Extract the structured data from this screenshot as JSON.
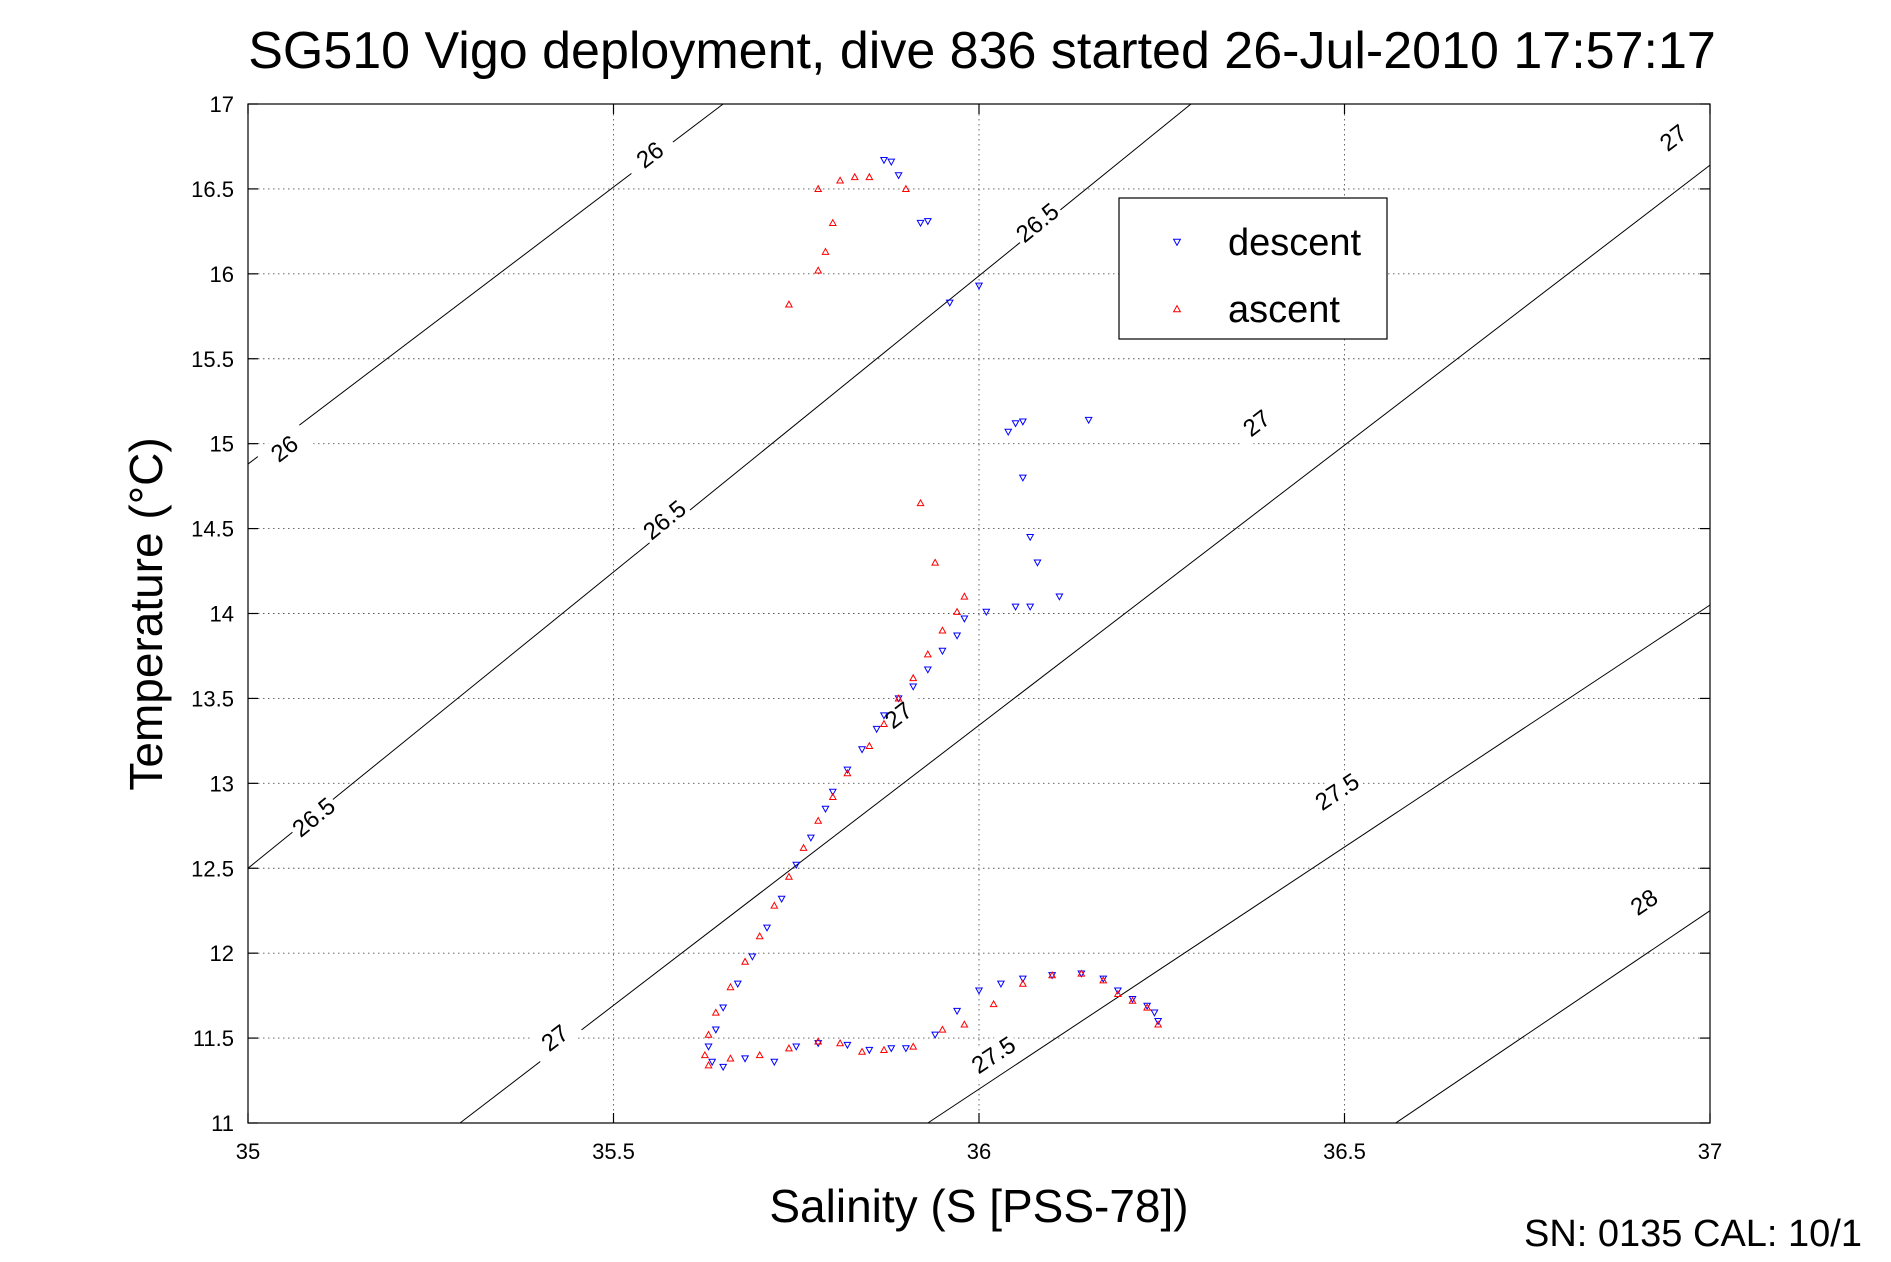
{
  "chart_data": {
    "type": "scatter",
    "title": "SG510 Vigo deployment, dive 836 started 26-Jul-2010 17:57:17",
    "xlabel": "Salinity (S [PSS-78])",
    "ylabel": "Temperature (°C)",
    "xlim": [
      35,
      37
    ],
    "ylim": [
      11,
      17
    ],
    "xticks": [
      "35",
      "35.5",
      "36",
      "36.5",
      "37"
    ],
    "yticks": [
      "11",
      "11.5",
      "12",
      "12.5",
      "13",
      "13.5",
      "14",
      "14.5",
      "15",
      "15.5",
      "16",
      "16.5",
      "17"
    ],
    "grid": true,
    "legend": "upper-right",
    "footer": "SN: 0135  CAL: 10/1",
    "contours": [
      {
        "label": "26",
        "points": [
          [
            35.0,
            14.88
          ],
          [
            35.65,
            17.0
          ]
        ],
        "label_at": [
          [
            35.05,
            14.97
          ],
          [
            35.55,
            16.7
          ]
        ]
      },
      {
        "label": "26.5",
        "points": [
          [
            35.0,
            12.5
          ],
          [
            36.29,
            17.0
          ]
        ],
        "label_at": [
          [
            35.09,
            12.8
          ],
          [
            35.57,
            14.55
          ],
          [
            36.08,
            16.3
          ]
        ]
      },
      {
        "label": "27",
        "points": [
          [
            35.29,
            11.0
          ],
          [
            37.0,
            16.64
          ]
        ],
        "label_at": [
          [
            35.42,
            11.5
          ],
          [
            35.89,
            13.4
          ],
          [
            36.38,
            15.12
          ],
          [
            36.95,
            16.8
          ]
        ]
      },
      {
        "label": "27.5",
        "points": [
          [
            35.93,
            11.0
          ],
          [
            37.0,
            14.05
          ]
        ],
        "label_at": [
          [
            36.02,
            11.4
          ],
          [
            36.49,
            12.95
          ]
        ]
      },
      {
        "label": "28",
        "points": [
          [
            36.57,
            11.0
          ],
          [
            37.0,
            12.25
          ]
        ],
        "label_at": [
          [
            36.91,
            12.3
          ]
        ]
      }
    ],
    "series": [
      {
        "name": "descent",
        "color": "#0000ff",
        "marker": "triangle-down",
        "points": [
          [
            35.87,
            16.67
          ],
          [
            35.88,
            16.66
          ],
          [
            35.89,
            16.58
          ],
          [
            35.92,
            16.3
          ],
          [
            35.93,
            16.31
          ],
          [
            35.96,
            15.83
          ],
          [
            36.0,
            15.93
          ],
          [
            36.04,
            15.07
          ],
          [
            36.05,
            15.12
          ],
          [
            36.06,
            14.8
          ],
          [
            36.06,
            15.13
          ],
          [
            36.07,
            14.45
          ],
          [
            36.08,
            14.3
          ],
          [
            36.15,
            15.14
          ],
          [
            36.11,
            14.1
          ],
          [
            36.07,
            14.04
          ],
          [
            36.05,
            14.04
          ],
          [
            36.01,
            14.01
          ],
          [
            35.98,
            13.97
          ],
          [
            35.97,
            13.87
          ],
          [
            35.95,
            13.78
          ],
          [
            35.93,
            13.67
          ],
          [
            35.91,
            13.57
          ],
          [
            35.89,
            13.5
          ],
          [
            35.87,
            13.4
          ],
          [
            35.86,
            13.32
          ],
          [
            35.84,
            13.2
          ],
          [
            35.82,
            13.08
          ],
          [
            35.8,
            12.95
          ],
          [
            35.79,
            12.85
          ],
          [
            35.77,
            12.68
          ],
          [
            35.75,
            12.52
          ],
          [
            35.73,
            12.32
          ],
          [
            35.71,
            12.15
          ],
          [
            35.69,
            11.98
          ],
          [
            35.67,
            11.82
          ],
          [
            35.65,
            11.68
          ],
          [
            35.64,
            11.55
          ],
          [
            35.63,
            11.45
          ],
          [
            35.635,
            11.36
          ],
          [
            35.65,
            11.33
          ],
          [
            35.68,
            11.38
          ],
          [
            35.72,
            11.36
          ],
          [
            35.75,
            11.45
          ],
          [
            35.78,
            11.47
          ],
          [
            35.82,
            11.46
          ],
          [
            35.85,
            11.43
          ],
          [
            35.88,
            11.44
          ],
          [
            35.9,
            11.44
          ],
          [
            35.94,
            11.52
          ],
          [
            35.97,
            11.66
          ],
          [
            36.0,
            11.78
          ],
          [
            36.03,
            11.82
          ],
          [
            36.06,
            11.85
          ],
          [
            36.1,
            11.87
          ],
          [
            36.14,
            11.88
          ],
          [
            36.17,
            11.85
          ],
          [
            36.19,
            11.78
          ],
          [
            36.21,
            11.73
          ],
          [
            36.23,
            11.69
          ],
          [
            36.24,
            11.65
          ],
          [
            36.245,
            11.6
          ]
        ]
      },
      {
        "name": "ascent",
        "color": "#ff0000",
        "marker": "triangle-up",
        "points": [
          [
            35.74,
            15.82
          ],
          [
            35.78,
            16.02
          ],
          [
            35.79,
            16.13
          ],
          [
            35.8,
            16.3
          ],
          [
            35.78,
            16.5
          ],
          [
            35.81,
            16.55
          ],
          [
            35.83,
            16.57
          ],
          [
            35.85,
            16.57
          ],
          [
            35.9,
            16.5
          ],
          [
            35.92,
            14.65
          ],
          [
            35.94,
            14.3
          ],
          [
            35.98,
            14.1
          ],
          [
            35.97,
            14.01
          ],
          [
            35.95,
            13.9
          ],
          [
            35.93,
            13.76
          ],
          [
            35.91,
            13.62
          ],
          [
            35.89,
            13.5
          ],
          [
            35.87,
            13.35
          ],
          [
            35.85,
            13.22
          ],
          [
            35.82,
            13.06
          ],
          [
            35.8,
            12.92
          ],
          [
            35.78,
            12.78
          ],
          [
            35.76,
            12.62
          ],
          [
            35.74,
            12.45
          ],
          [
            35.72,
            12.28
          ],
          [
            35.7,
            12.1
          ],
          [
            35.68,
            11.95
          ],
          [
            35.66,
            11.8
          ],
          [
            35.64,
            11.65
          ],
          [
            35.63,
            11.52
          ],
          [
            35.625,
            11.4
          ],
          [
            35.63,
            11.34
          ],
          [
            35.66,
            11.38
          ],
          [
            35.7,
            11.4
          ],
          [
            35.74,
            11.44
          ],
          [
            35.78,
            11.48
          ],
          [
            35.81,
            11.47
          ],
          [
            35.84,
            11.42
          ],
          [
            35.87,
            11.43
          ],
          [
            35.91,
            11.45
          ],
          [
            35.95,
            11.55
          ],
          [
            35.98,
            11.58
          ],
          [
            36.02,
            11.7
          ],
          [
            36.06,
            11.82
          ],
          [
            36.1,
            11.87
          ],
          [
            36.14,
            11.88
          ],
          [
            36.17,
            11.84
          ],
          [
            36.19,
            11.76
          ],
          [
            36.21,
            11.72
          ],
          [
            36.23,
            11.68
          ],
          [
            36.245,
            11.58
          ]
        ]
      }
    ]
  }
}
